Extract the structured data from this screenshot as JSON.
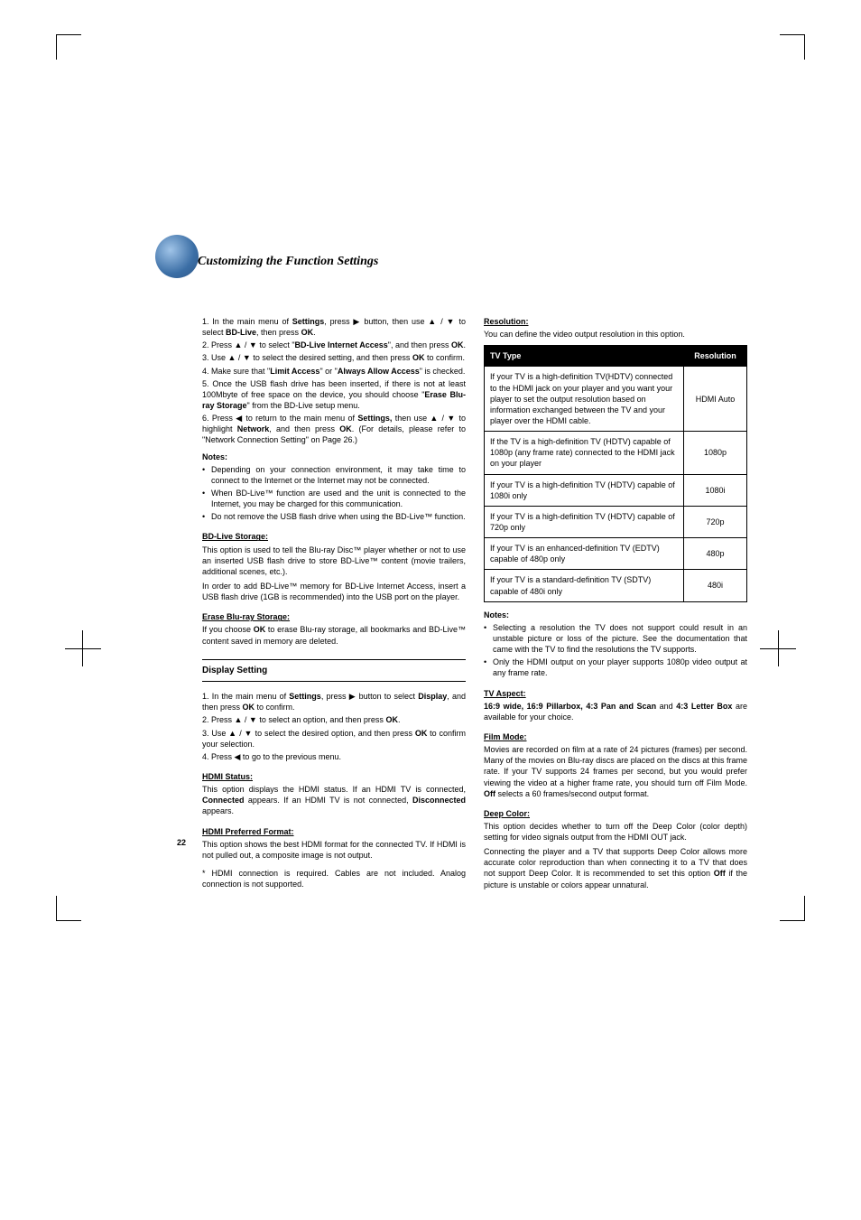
{
  "page": {
    "title": "Customizing the Function Settings",
    "number": "22"
  },
  "left": {
    "steps": [
      {
        "n": "1.",
        "t_pre": "In the main menu of ",
        "b1": "Settings",
        "t_mid1": ", press ▶ button, then use ▲ / ▼ to select ",
        "b2": "BD-Live",
        "t_mid2": ", then press ",
        "b3": "OK",
        "t_end": "."
      },
      {
        "n": "2.",
        "t_pre": "Press ▲ / ▼ to select \"",
        "b1": "BD-Live Internet Access",
        "t_mid1": "\", and then press ",
        "b2": "OK",
        "t_end": "."
      },
      {
        "n": "3.",
        "t_pre": "Use ▲ / ▼ to select the desired setting, and then press ",
        "b1": "OK",
        "t_end": " to confirm."
      },
      {
        "n": "4.",
        "t_pre": "Make sure that \"",
        "b1": "Limit Access",
        "t_mid1": "\" or \"",
        "b2": "Always Allow Access",
        "t_end": "\" is checked."
      },
      {
        "n": "5.",
        "t_pre": "Once the USB flash drive has been inserted, if there is not at least 100Mbyte of free space on the device, you should choose \"",
        "b1": "Erase Blu-ray Storage",
        "t_end": "\" from the BD-Live setup menu."
      },
      {
        "n": "6.",
        "t_pre": "Press ◀ to return to the main menu of ",
        "b1": "Settings,",
        "t_mid1": " then use ▲ / ▼ to highlight ",
        "b2": "Network",
        "t_mid2": ", and then press ",
        "b3": "OK",
        "t_end": ". (For details, please refer to \"Network Connection Setting\" on Page 26.)"
      }
    ],
    "notes_label": "Notes:",
    "notes": [
      "Depending on your connection environment, it may take time to connect to the Internet or the Internet may not be connected.",
      "When BD-Live™ function are used and the unit is connected to the Internet, you may be charged for this communication.",
      "Do not remove the USB flash drive when using the BD-Live™ function."
    ],
    "bdlive_hdr": "BD-Live Storage:",
    "bdlive_p1": "This option is used to tell the Blu-ray Disc™ player whether or not to use an inserted USB flash drive to store BD-Live™ content (movie trailers, additional scenes, etc.).",
    "bdlive_p2": "In order to add BD-Live™ memory for BD-Live Internet Access, insert a USB flash drive (1GB is recommended) into the USB port on the player.",
    "erase_hdr": "Erase Blu-ray Storage: ",
    "erase_p_pre": "If you choose ",
    "erase_p_b": "OK",
    "erase_p_post": " to erase Blu-ray storage, all bookmarks and BD-Live™ content saved in memory are deleted.",
    "display_box": "Display Setting",
    "dsteps": [
      {
        "n": "1.",
        "t_pre": "In the main menu of ",
        "b1": "Settings",
        "t_mid1": ", press ▶ button to select ",
        "b2": "Display",
        "t_mid2": ", and then press ",
        "b3": "OK",
        "t_end": " to confirm."
      },
      {
        "n": "2.",
        "t_pre": "Press ▲ / ▼ to select an option, and then press ",
        "b1": "OK",
        "t_end": "."
      },
      {
        "n": "3.",
        "t_pre": "Use ▲ / ▼ to select the desired option, and then press ",
        "b1": "OK",
        "t_end": " to confirm your selection."
      },
      {
        "n": "4.",
        "t_pre": "Press ◀ to go to the previous menu.",
        "t_end": ""
      }
    ],
    "hdmi_status_hdr": "HDMI Status:",
    "hdmi_status_p_1": "This option displays the HDMI status. If an HDMI TV is connected, ",
    "hdmi_status_b1": "Connected",
    "hdmi_status_p_2": " appears. If an HDMI TV is not connected, ",
    "hdmi_status_b2": "Disconnected",
    "hdmi_status_p_3": " appears.",
    "hdmi_pref_hdr": "HDMI Preferred Format:",
    "hdmi_pref_p": "This option shows the best HDMI format for the connected TV. If HDMI is not pulled out, a composite image is not output.",
    "hdmi_note": "* HDMI connection is required. Cables are not included. Analog connection is not supported."
  },
  "right": {
    "res_hdr": "Resolution:",
    "res_intro": "You can define the video output resolution in this option.",
    "table": {
      "h1": "TV Type",
      "h2": "Resolution",
      "rows": [
        [
          "If your TV is a high-definition TV(HDTV) connected to the HDMI jack on your player and you want your player to set the output resolution based on information exchanged between the TV and your player over the HDMI cable.",
          "HDMI Auto"
        ],
        [
          "If the TV is a high-definition TV (HDTV) capable of 1080p (any frame rate) connected to the HDMI jack on your player",
          "1080p"
        ],
        [
          "If your TV is a high-definition TV (HDTV) capable of 1080i only",
          "1080i"
        ],
        [
          "If your TV is a high-definition TV (HDTV) capable of 720p only",
          "720p"
        ],
        [
          "If your TV is an enhanced-definition TV (EDTV) capable of 480p only",
          "480p"
        ],
        [
          "If your TV is a standard-definition TV (SDTV) capable of 480i only",
          "480i"
        ]
      ]
    },
    "notes_label": "Notes:",
    "notes": [
      "Selecting a resolution the TV does not support could result in an unstable picture or loss of the picture. See the documentation that came with the TV to find the resolutions the TV supports.",
      "Only the HDMI output on your player supports 1080p video output at any frame rate."
    ],
    "aspect_hdr": "TV Aspect:",
    "aspect_b": "16:9 wide, 16:9 Pillarbox, 4:3 Pan and Scan",
    "aspect_mid": " and ",
    "aspect_b2": "4:3 Letter Box",
    "aspect_end": " are available for your choice.",
    "film_hdr": "Film Mode:",
    "film_p_1": "Movies are recorded on film at a rate of 24 pictures (frames) per second. Many of the movies on Blu-ray discs are placed on the discs at this frame rate. If your TV supports 24 frames per second, but you would prefer viewing the video at a higher frame rate, you should turn off Film Mode. ",
    "film_b": "Off",
    "film_p_2": " selects a 60 frames/second output format.",
    "deep_hdr": "Deep Color:",
    "deep_p1": "This option decides whether to turn off the Deep Color (color depth) setting for video signals output from the HDMI OUT jack.",
    "deep_p2_1": "Connecting the player and a TV that supports Deep Color allows more accurate color reproduction than when connecting it to a TV that does not support Deep Color. It is recommended to set this option ",
    "deep_b": "Off",
    "deep_p2_2": " if the picture is unstable or colors appear unnatural."
  }
}
